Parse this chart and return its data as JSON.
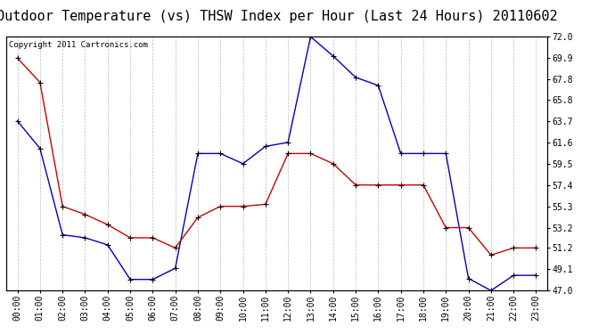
{
  "title": "Outdoor Temperature (vs) THSW Index per Hour (Last 24 Hours) 20110602",
  "copyright": "Copyright 2011 Cartronics.com",
  "hours": [
    "00:00",
    "01:00",
    "02:00",
    "03:00",
    "04:00",
    "05:00",
    "06:00",
    "07:00",
    "08:00",
    "09:00",
    "10:00",
    "11:00",
    "12:00",
    "13:00",
    "14:00",
    "15:00",
    "16:00",
    "17:00",
    "18:00",
    "19:00",
    "20:00",
    "21:00",
    "22:00",
    "23:00"
  ],
  "blue_data": [
    63.7,
    61.0,
    52.5,
    52.2,
    51.5,
    48.1,
    48.1,
    49.2,
    60.5,
    60.5,
    59.5,
    61.2,
    61.6,
    72.0,
    70.1,
    68.0,
    67.2,
    60.5,
    60.5,
    60.5,
    48.2,
    47.0,
    48.5,
    48.5
  ],
  "red_data": [
    69.9,
    67.5,
    55.3,
    54.5,
    53.5,
    52.2,
    52.2,
    51.2,
    54.2,
    55.3,
    55.3,
    55.5,
    60.5,
    60.5,
    59.5,
    57.4,
    57.4,
    57.4,
    57.4,
    53.2,
    53.2,
    50.5,
    51.2,
    51.2
  ],
  "blue_color": "#0000bb",
  "red_color": "#cc0000",
  "bg_color": "#ffffff",
  "plot_bg_color": "#ffffff",
  "grid_color": "#bbbbbb",
  "ylim": [
    47.0,
    72.5
  ],
  "ymin": 47.0,
  "ymax": 72.0,
  "yticks_right": [
    47.0,
    49.1,
    51.2,
    53.2,
    55.3,
    57.4,
    59.5,
    61.6,
    63.7,
    65.8,
    67.8,
    69.9,
    72.0
  ],
  "title_fontsize": 11,
  "copyright_fontsize": 6.5,
  "tick_fontsize": 7,
  "marker": "+"
}
